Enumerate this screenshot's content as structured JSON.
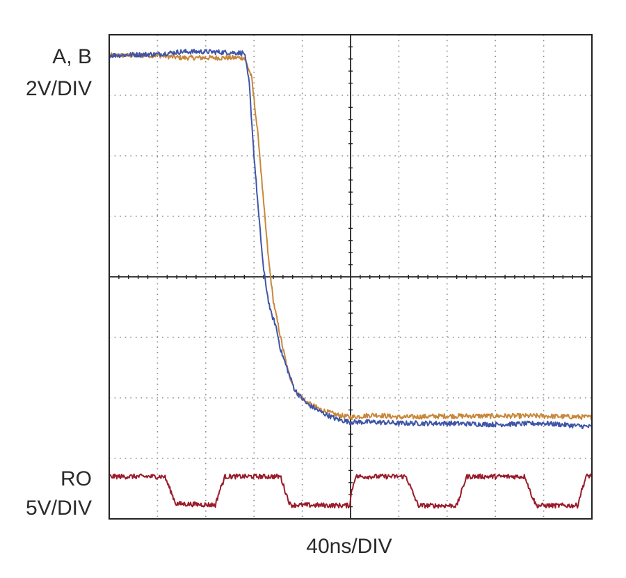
{
  "labels": {
    "top_channel_name": "A, B",
    "top_channel_scale": "2V/DIV",
    "bottom_channel_name": "RO",
    "bottom_channel_scale": "5V/DIV",
    "time_scale": "40ns/DIV"
  },
  "chart_data": {
    "type": "line",
    "title": "",
    "xlabel": "40ns/DIV",
    "ylabel": "",
    "grid": true,
    "grid_divisions": {
      "x": 10,
      "y": 8
    },
    "xlim_div": [
      0,
      10
    ],
    "ylim_div": [
      0,
      8
    ],
    "series": [
      {
        "name": "A",
        "color": "#c8873a",
        "points": [
          [
            0,
            7.66
          ],
          [
            1.0,
            7.66
          ],
          [
            1.5,
            7.62
          ],
          [
            2.0,
            7.62
          ],
          [
            2.8,
            7.62
          ],
          [
            2.95,
            7.3
          ],
          [
            3.1,
            6.2
          ],
          [
            3.2,
            5.2
          ],
          [
            3.3,
            4.3
          ],
          [
            3.4,
            3.6
          ],
          [
            3.55,
            3.0
          ],
          [
            3.7,
            2.45
          ],
          [
            3.85,
            2.12
          ],
          [
            4.1,
            1.92
          ],
          [
            4.4,
            1.8
          ],
          [
            4.7,
            1.72
          ],
          [
            5.0,
            1.68
          ],
          [
            5.5,
            1.72
          ],
          [
            6.0,
            1.68
          ],
          [
            7.0,
            1.7
          ],
          [
            8.0,
            1.7
          ],
          [
            9.0,
            1.7
          ],
          [
            10.0,
            1.68
          ]
        ]
      },
      {
        "name": "B",
        "color": "#3f55a8",
        "points": [
          [
            0,
            7.66
          ],
          [
            1.0,
            7.68
          ],
          [
            1.5,
            7.72
          ],
          [
            2.0,
            7.72
          ],
          [
            2.8,
            7.7
          ],
          [
            2.9,
            7.2
          ],
          [
            3.0,
            6.0
          ],
          [
            3.1,
            5.0
          ],
          [
            3.2,
            4.1
          ],
          [
            3.3,
            3.6
          ],
          [
            3.35,
            3.4
          ],
          [
            3.45,
            3.2
          ],
          [
            3.55,
            2.8
          ],
          [
            3.7,
            2.45
          ],
          [
            3.85,
            2.12
          ],
          [
            4.1,
            1.9
          ],
          [
            4.4,
            1.76
          ],
          [
            4.7,
            1.65
          ],
          [
            5.0,
            1.6
          ],
          [
            5.5,
            1.6
          ],
          [
            6.0,
            1.58
          ],
          [
            7.0,
            1.58
          ],
          [
            8.0,
            1.56
          ],
          [
            9.0,
            1.58
          ],
          [
            10.0,
            1.52
          ]
        ]
      },
      {
        "name": "RO",
        "color": "#9a1b2a",
        "points": [
          [
            0,
            0.7
          ],
          [
            1.15,
            0.7
          ],
          [
            1.28,
            0.45
          ],
          [
            1.38,
            0.25
          ],
          [
            2.2,
            0.23
          ],
          [
            2.28,
            0.45
          ],
          [
            2.4,
            0.7
          ],
          [
            3.55,
            0.7
          ],
          [
            3.65,
            0.45
          ],
          [
            3.75,
            0.23
          ],
          [
            4.98,
            0.22
          ],
          [
            5.02,
            0.45
          ],
          [
            5.1,
            0.7
          ],
          [
            6.15,
            0.7
          ],
          [
            6.28,
            0.45
          ],
          [
            6.4,
            0.22
          ],
          [
            7.2,
            0.22
          ],
          [
            7.3,
            0.45
          ],
          [
            7.4,
            0.7
          ],
          [
            8.62,
            0.7
          ],
          [
            8.72,
            0.45
          ],
          [
            8.85,
            0.22
          ],
          [
            9.7,
            0.22
          ],
          [
            9.78,
            0.45
          ],
          [
            9.88,
            0.7
          ],
          [
            10.0,
            0.72
          ]
        ]
      }
    ]
  }
}
